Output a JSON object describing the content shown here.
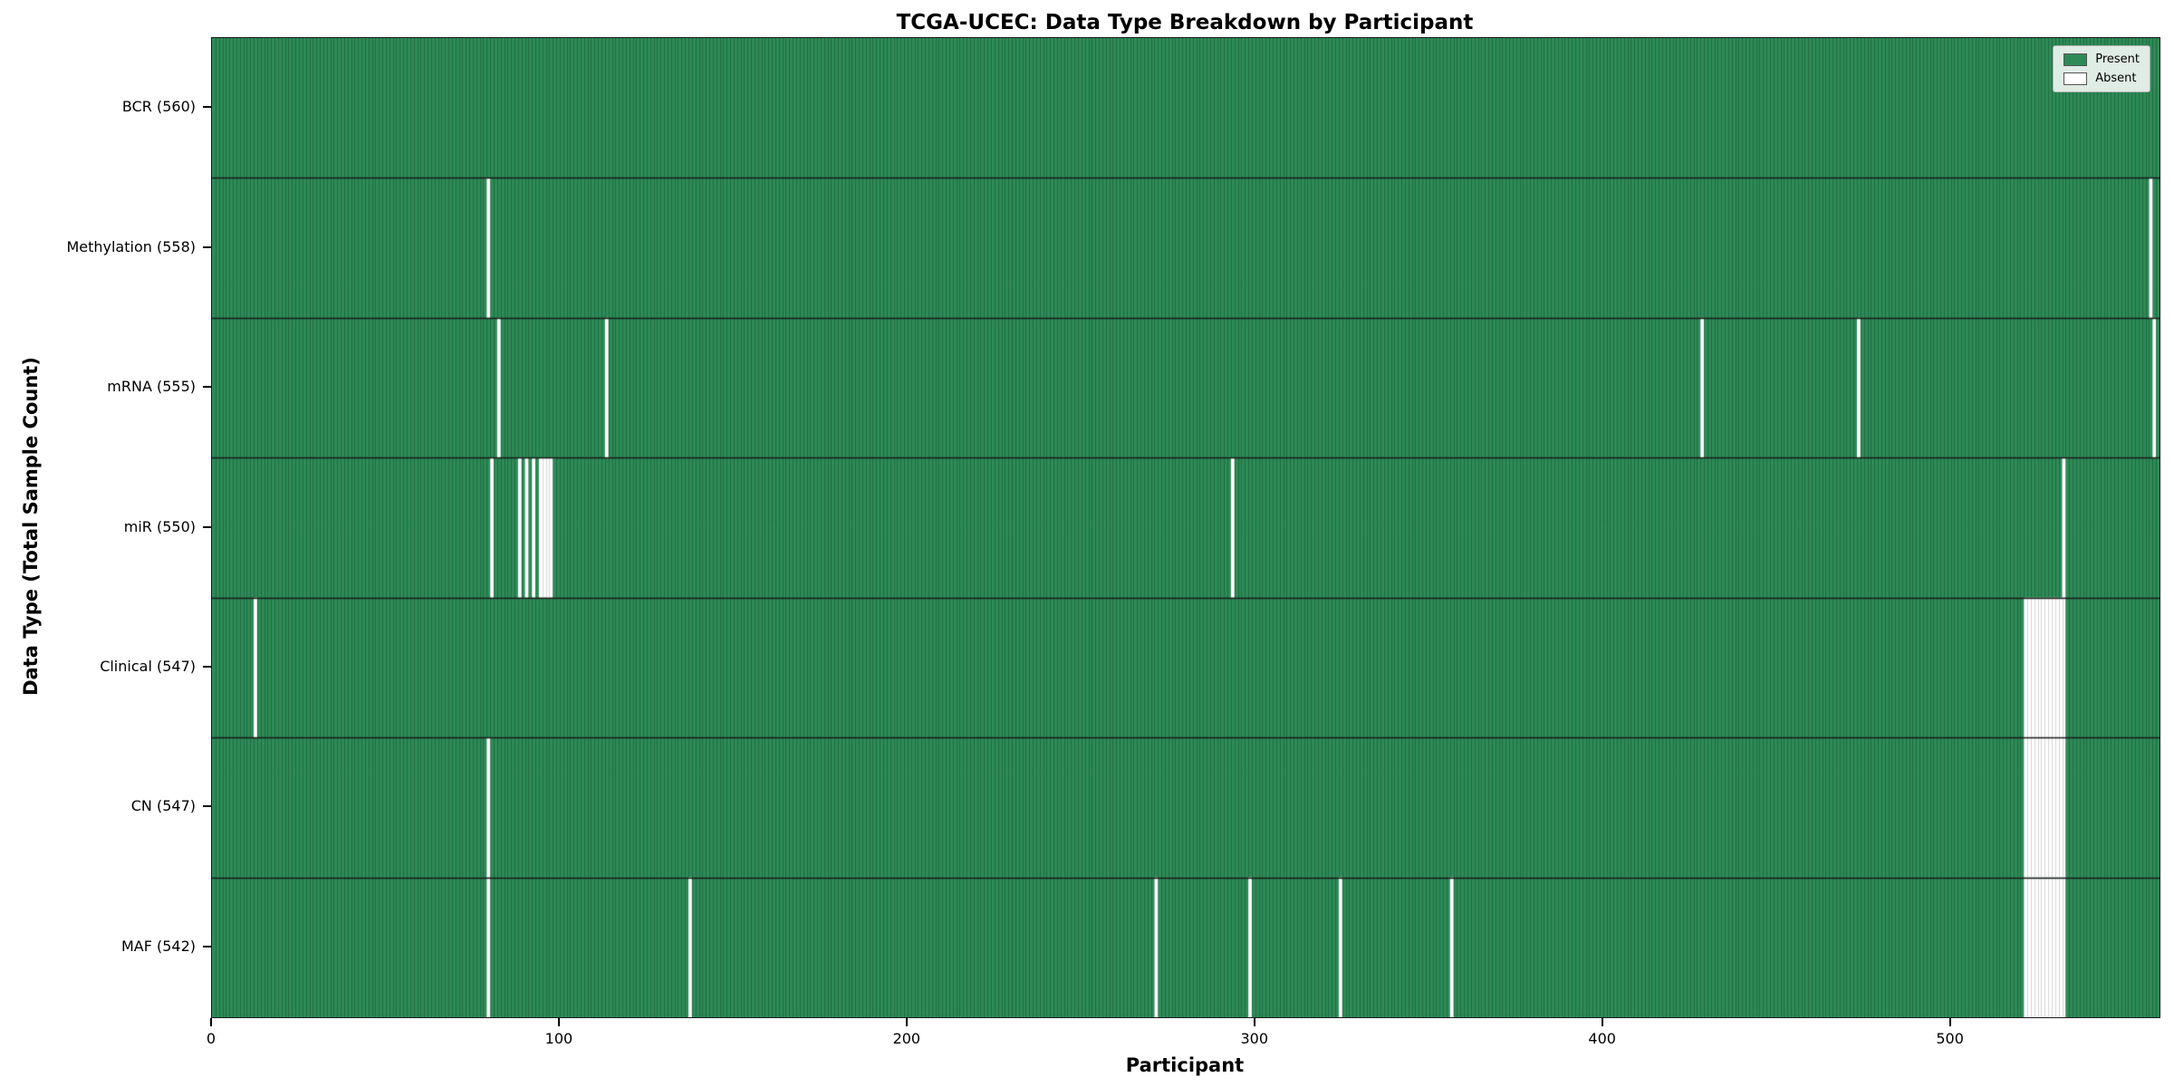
{
  "chart_data": {
    "type": "heatmap",
    "title": "TCGA-UCEC: Data Type Breakdown by Participant",
    "xlabel": "Participant",
    "ylabel": "Data Type (Total Sample Count)",
    "n_participants": 560,
    "xlim": [
      0,
      560
    ],
    "x_ticks": [
      0,
      100,
      200,
      300,
      400,
      500
    ],
    "present_color": "#2e8b57",
    "absent_color": "#ffffff",
    "cell_edge_color_present": "rgba(10,70,40,0.45)",
    "cell_edge_color_absent": "#d4d4d4",
    "row_divider_color": "#1a1a1a",
    "legend_position": "upper right",
    "grid": false,
    "legend": [
      {
        "label": "Present",
        "color": "#2e8b57"
      },
      {
        "label": "Absent",
        "color": "#ffffff"
      }
    ],
    "rows": [
      {
        "label": "BCR (560)",
        "present_count": 560,
        "absent_ranges": []
      },
      {
        "label": "Methylation (558)",
        "present_count": 558,
        "absent_ranges": [
          [
            79,
            79
          ],
          [
            557,
            557
          ]
        ]
      },
      {
        "label": "mRNA (555)",
        "present_count": 555,
        "absent_ranges": [
          [
            82,
            82
          ],
          [
            113,
            113
          ],
          [
            428,
            428
          ],
          [
            473,
            473
          ],
          [
            558,
            558
          ]
        ]
      },
      {
        "label": "miR (550)",
        "present_count": 550,
        "absent_ranges": [
          [
            80,
            80
          ],
          [
            88,
            88
          ],
          [
            90,
            90
          ],
          [
            92,
            92
          ],
          [
            94,
            97
          ],
          [
            293,
            293
          ],
          [
            532,
            532
          ]
        ]
      },
      {
        "label": "Clinical (547)",
        "present_count": 547,
        "absent_ranges": [
          [
            12,
            12
          ],
          [
            521,
            532
          ]
        ]
      },
      {
        "label": "CN (547)",
        "present_count": 547,
        "absent_ranges": [
          [
            79,
            79
          ],
          [
            521,
            532
          ]
        ]
      },
      {
        "label": "MAF (542)",
        "present_count": 542,
        "absent_ranges": [
          [
            79,
            79
          ],
          [
            137,
            137
          ],
          [
            271,
            271
          ],
          [
            298,
            298
          ],
          [
            324,
            324
          ],
          [
            356,
            356
          ],
          [
            521,
            532
          ]
        ]
      }
    ]
  }
}
